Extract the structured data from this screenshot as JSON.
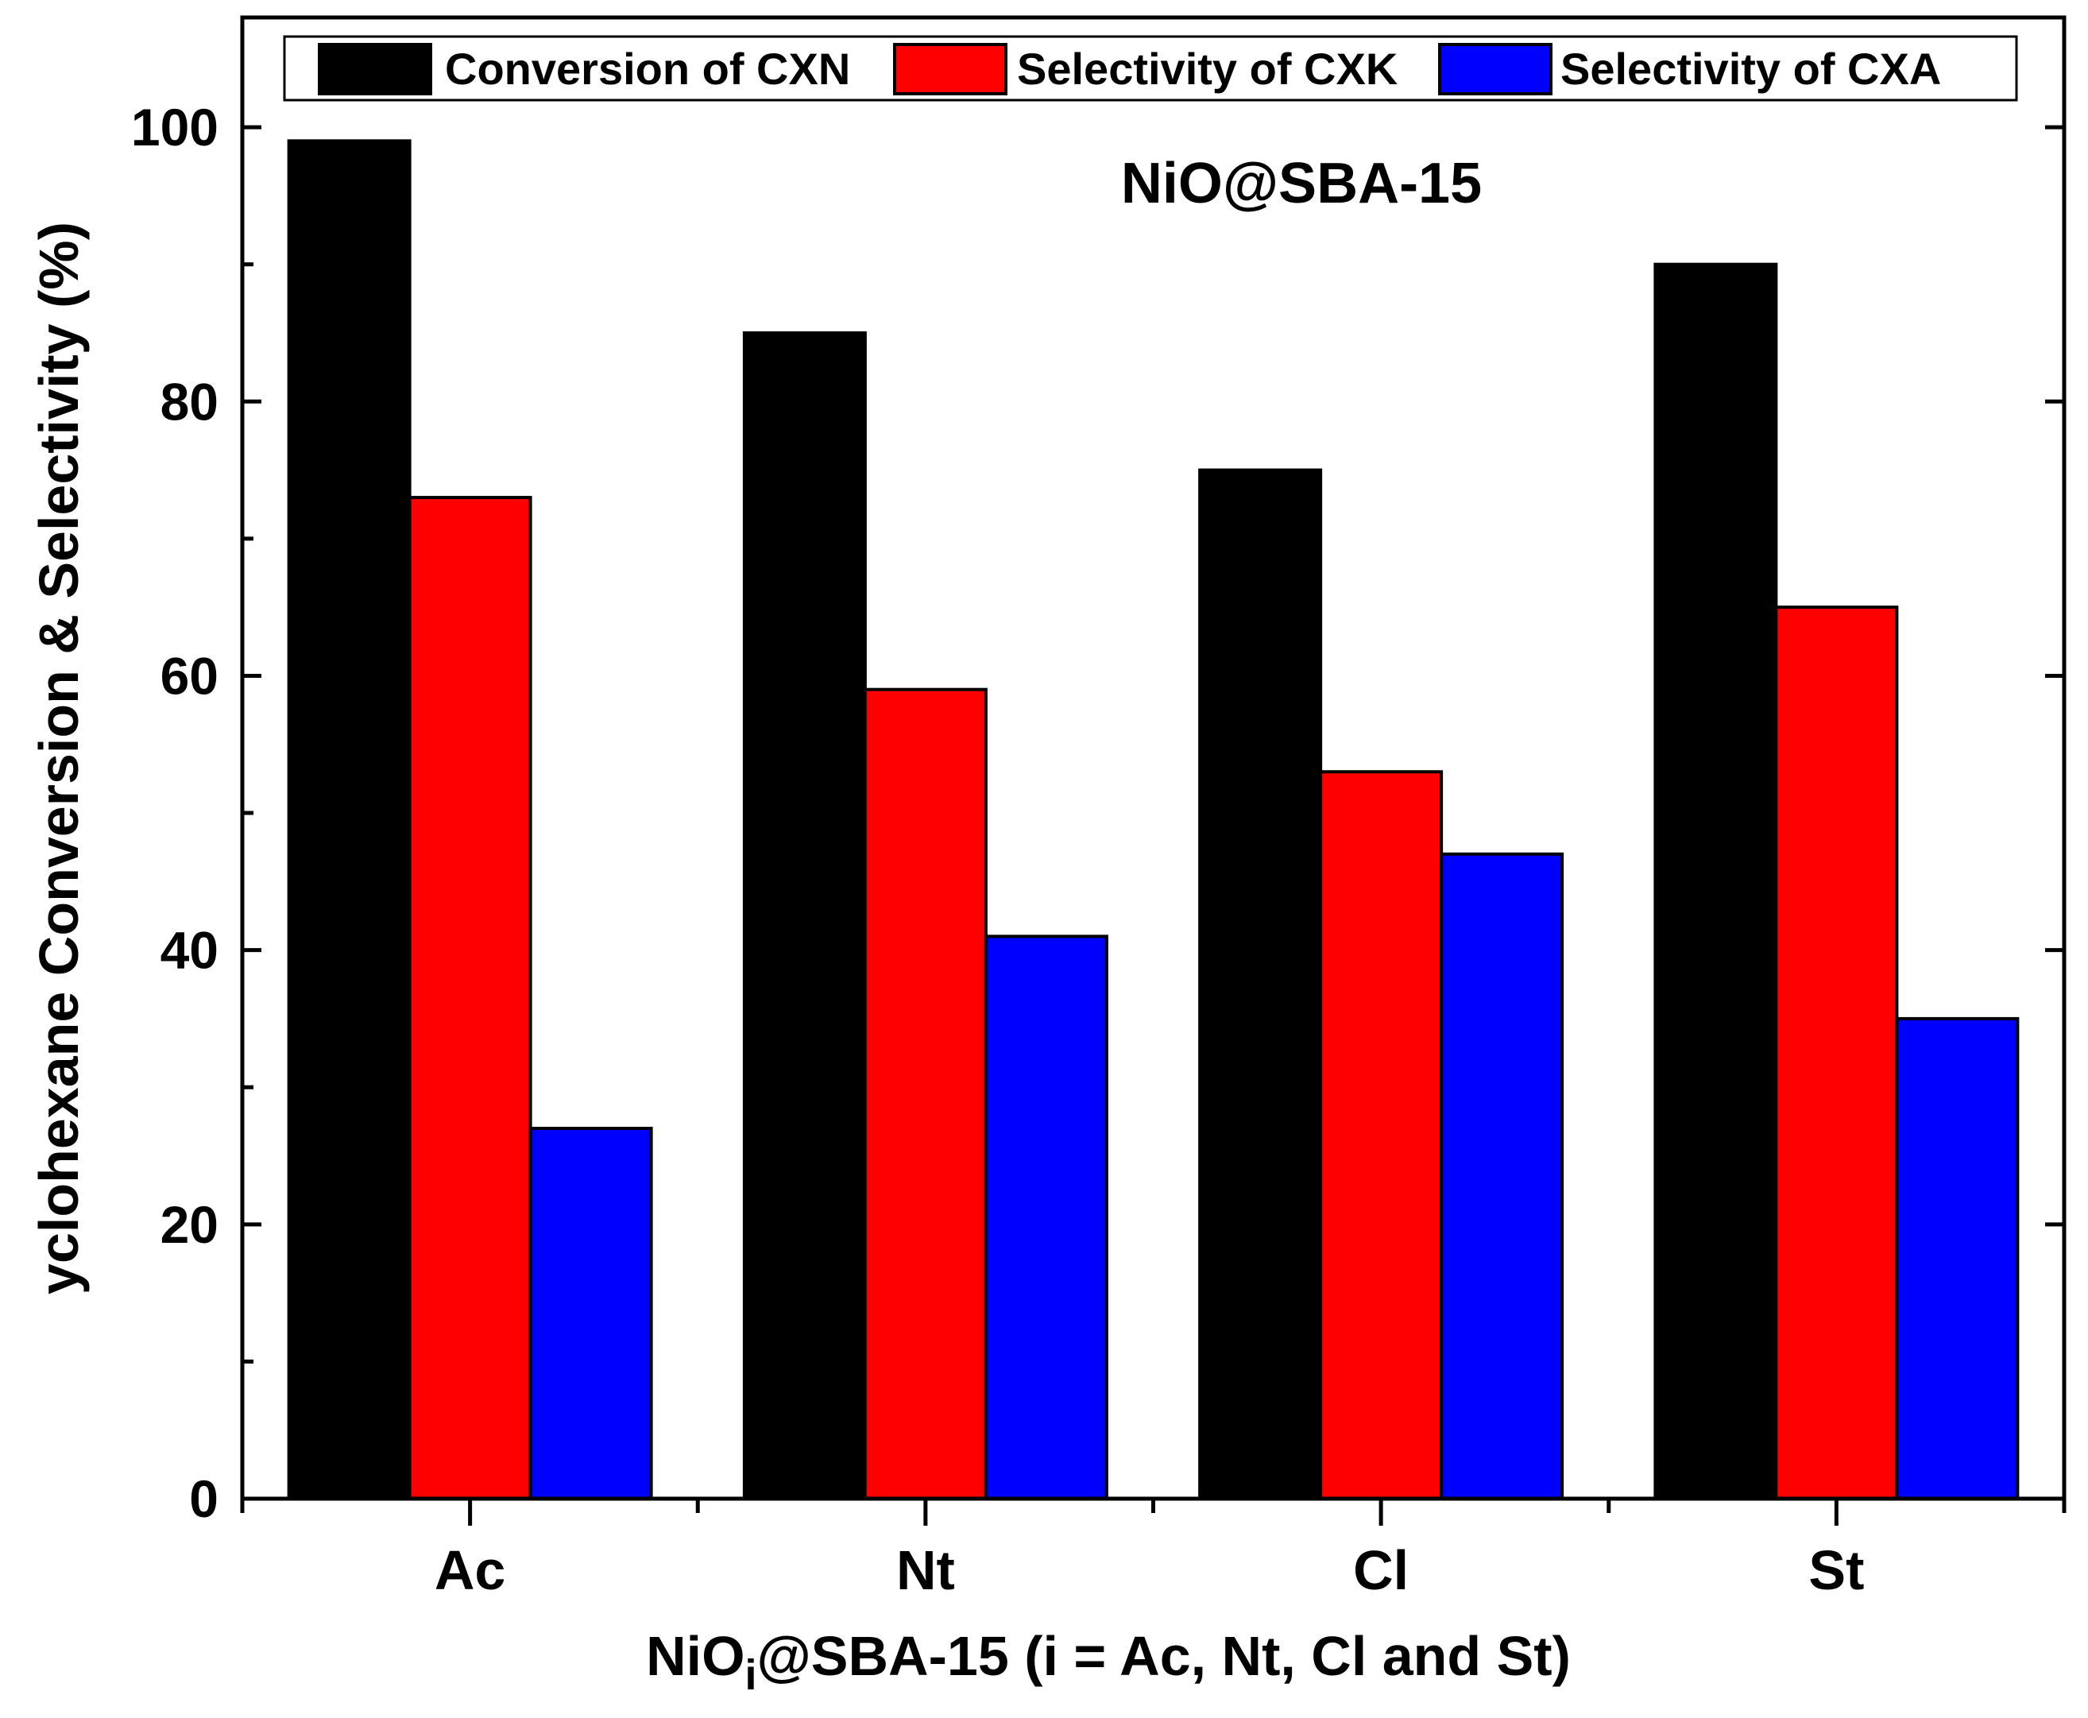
{
  "chart_data": {
    "type": "bar",
    "categories": [
      "Ac",
      "Nt",
      "Cl",
      "St"
    ],
    "series": [
      {
        "name": "Conversion of CXN",
        "color": "#000000",
        "values": [
          99,
          85,
          75,
          90
        ]
      },
      {
        "name": "Selectivity of CXK",
        "color": "#ff0000",
        "values": [
          73,
          59,
          53,
          65
        ]
      },
      {
        "name": "Selectivity of CXA",
        "color": "#0000ff",
        "values": [
          27,
          41,
          47,
          35
        ]
      }
    ],
    "title": "",
    "annotation": "NiO@SBA-15",
    "xlabel_parts": {
      "pre": "NiO",
      "sub": "i",
      "post": "@SBA-15 (i = Ac, Nt, Cl and St)"
    },
    "ylabel": "yclohexane Conversion & Selectivity (%)",
    "ylim": [
      0,
      108
    ],
    "yticks": [
      0,
      20,
      40,
      60,
      80,
      100
    ],
    "ytick_labels": [
      "0",
      "20",
      "40",
      "60",
      "80",
      "100"
    ],
    "legend_position": "top"
  }
}
